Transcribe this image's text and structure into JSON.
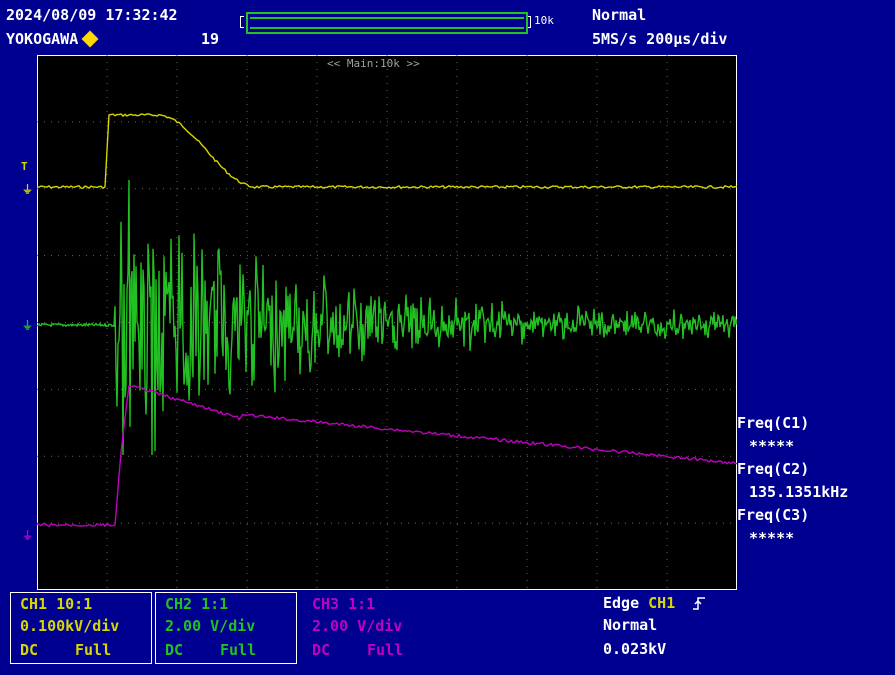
{
  "header": {
    "timestamp": "2024/08/09 17:32:42",
    "brand": "YOKOGAWA",
    "acq_count": "19",
    "record_length": "10k",
    "trigger_mode": "Normal",
    "sample_rate": "5MS/s 200μs/div",
    "zoom_label": "<< Main:10k >>"
  },
  "measurements": {
    "label1": "Freq(C1)",
    "value1": "*****",
    "label2": "Freq(C2)",
    "value2": "135.1351kHz",
    "label3": "Freq(C3)",
    "value3": "*****"
  },
  "channels": [
    {
      "name": "CH1 10:1",
      "scale": "0.100kV/div",
      "coupling": "DC",
      "bw": "Full",
      "color": "#d6d600"
    },
    {
      "name": "CH2 1:1",
      "scale": "2.00 V/div",
      "coupling": "DC",
      "bw": "Full",
      "color": "#22c022"
    },
    {
      "name": "CH3 1:1",
      "scale": "2.00 V/div",
      "coupling": "DC",
      "bw": "Full",
      "color": "#c000c0"
    }
  ],
  "trigger": {
    "label": "Edge",
    "source": "CH1",
    "mode": "Normal",
    "level": "0.023kV"
  },
  "markers": {
    "trigger_level": "T",
    "ground": "⏚"
  }
}
